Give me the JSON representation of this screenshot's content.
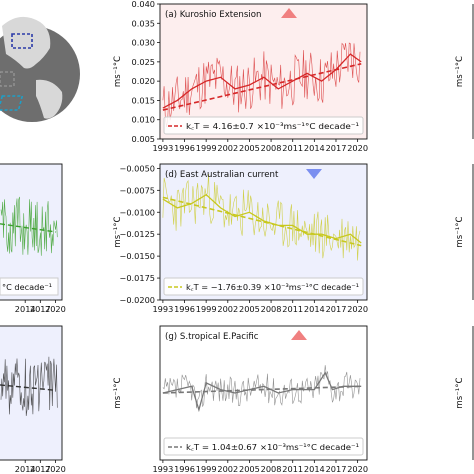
{
  "globe": {
    "ocean": "#6e6e6e",
    "land": "#d8d8d8",
    "box_colors": [
      "#2b3aa8",
      "#1e9fc7",
      "#999999"
    ]
  },
  "chart_data": [
    {
      "id": "a",
      "type": "line",
      "title": "(a) Kuroshio Extension",
      "trend_marker": "up",
      "marker_color": "#f08080",
      "panel_bg": "#fdeeee",
      "color": "#d62728",
      "ylabel": "ms⁻¹°C",
      "ylim": [
        0.005,
        0.04
      ],
      "yticks": [
        "0.040",
        "0.035",
        "0.030",
        "0.025",
        "0.020",
        "0.015",
        "0.010",
        "0.005"
      ],
      "ytick_values": [
        0.04,
        0.035,
        0.03,
        0.025,
        0.02,
        0.015,
        0.01,
        0.005
      ],
      "xticks": [
        "1993",
        "1996",
        "1999",
        "2002",
        "2005",
        "2008",
        "2011",
        "2014",
        "2017",
        "2020"
      ],
      "xlim": [
        1992.6,
        2021.3
      ],
      "monthly_range": [
        0.007,
        0.038
      ],
      "smooth_points": [
        [
          1993,
          0.013
        ],
        [
          1995,
          0.015
        ],
        [
          1997,
          0.018
        ],
        [
          1999,
          0.02
        ],
        [
          2001,
          0.021
        ],
        [
          2003,
          0.018
        ],
        [
          2005,
          0.019
        ],
        [
          2007,
          0.021
        ],
        [
          2009,
          0.018
        ],
        [
          2011,
          0.02
        ],
        [
          2013,
          0.022
        ],
        [
          2015,
          0.02
        ],
        [
          2017,
          0.023
        ],
        [
          2019,
          0.027
        ],
        [
          2020.5,
          0.025
        ]
      ],
      "trend_line": [
        [
          1993,
          0.0125
        ],
        [
          2020.5,
          0.0245
        ]
      ],
      "legend_label": "k꜀T = 4.16±0.7 ×10⁻³ms⁻¹°C decade⁻¹",
      "legend_position": "bottom"
    },
    {
      "id": "d",
      "type": "line",
      "title": "(d) East Australian current",
      "trend_marker": "down",
      "marker_color": "#7b8ff0",
      "panel_bg": "#eef0fd",
      "color": "#c8c81e",
      "ylabel": "ms⁻¹°C",
      "ylim": [
        -0.02,
        -0.0045
      ],
      "yticks": [
        "−0.0050",
        "−0.0075",
        "−0.0100",
        "−0.0125",
        "−0.0150",
        "−0.0175",
        "−0.0200"
      ],
      "ytick_values": [
        -0.005,
        -0.0075,
        -0.01,
        -0.0125,
        -0.015,
        -0.0175,
        -0.02
      ],
      "xticks": [
        "1993",
        "1996",
        "1999",
        "2002",
        "2005",
        "2008",
        "2011",
        "2014",
        "2017",
        "2020"
      ],
      "xlim": [
        1992.6,
        2021.3
      ],
      "monthly_range": [
        -0.0185,
        -0.0055
      ],
      "smooth_points": [
        [
          1993,
          -0.0085
        ],
        [
          1995,
          -0.0095
        ],
        [
          1997,
          -0.009
        ],
        [
          1999,
          -0.008
        ],
        [
          2001,
          -0.0095
        ],
        [
          2003,
          -0.0105
        ],
        [
          2005,
          -0.01
        ],
        [
          2007,
          -0.011
        ],
        [
          2009,
          -0.0115
        ],
        [
          2011,
          -0.0115
        ],
        [
          2013,
          -0.0125
        ],
        [
          2015,
          -0.0125
        ],
        [
          2017,
          -0.013
        ],
        [
          2019,
          -0.0125
        ],
        [
          2020.5,
          -0.0135
        ]
      ],
      "trend_line": [
        [
          1993,
          -0.0083
        ],
        [
          2020.5,
          -0.0138
        ]
      ],
      "legend_label": "k꜀T = −1.76±0.39 ×10⁻³ms⁻¹°C decade⁻¹",
      "legend_position": "bottom"
    },
    {
      "id": "g",
      "type": "line",
      "title": "(g) S.tropical E.Pacific",
      "trend_marker": "up",
      "marker_color": "#f08080",
      "panel_bg": "#ffffff",
      "color": "#777777",
      "ylabel": "ms⁻¹°C",
      "ylim": [
        -1,
        1
      ],
      "yticks": [],
      "ytick_values": [],
      "xticks": [
        "1993",
        "1996",
        "1999",
        "2002",
        "2005",
        "2008",
        "2011",
        "2014",
        "2017",
        "2020"
      ],
      "xlim": [
        1992.6,
        2021.3
      ],
      "monthly_range": [
        -0.55,
        0.45
      ],
      "smooth_points": [
        [
          1993,
          0.0
        ],
        [
          1995,
          0.05
        ],
        [
          1997,
          0.1
        ],
        [
          1998,
          -0.25
        ],
        [
          1999,
          0.15
        ],
        [
          2001,
          0.05
        ],
        [
          2003,
          0.0
        ],
        [
          2005,
          0.05
        ],
        [
          2007,
          0.1
        ],
        [
          2009,
          0.0
        ],
        [
          2011,
          0.05
        ],
        [
          2014,
          0.05
        ],
        [
          2015.5,
          0.3
        ],
        [
          2016.5,
          0.05
        ],
        [
          2018,
          0.1
        ],
        [
          2020.5,
          0.1
        ]
      ],
      "trend_line": [
        [
          1993,
          0.0
        ],
        [
          2020.5,
          0.1
        ]
      ],
      "legend_label": "k꜀T = 1.04±0.67 ×10⁻³ms⁻¹°C decade⁻¹",
      "legend_position": "bottom"
    },
    {
      "id": "left-mid",
      "type": "line",
      "title": "",
      "panel_bg": "#eef0fd",
      "color": "#3aa02a",
      "xticks_visible": [
        "2014",
        "2017",
        "2020"
      ],
      "xtick_years": [
        2014,
        2017,
        2020
      ],
      "xlim": [
        1992.6,
        2021.3
      ],
      "legend_label": "°C decade⁻¹"
    },
    {
      "id": "left-bot",
      "type": "line",
      "title": "",
      "panel_bg": "#eef0fd",
      "color": "#333333",
      "xticks_visible": [
        "2014",
        "2017",
        "2020"
      ],
      "xtick_years": [
        2014,
        2017,
        2020
      ],
      "xlim": [
        1992.6,
        2021.3
      ],
      "legend_label": ""
    },
    {
      "id": "right-col",
      "type": "line",
      "ylabel": "ms⁻¹°C",
      "legend_label": ""
    }
  ]
}
